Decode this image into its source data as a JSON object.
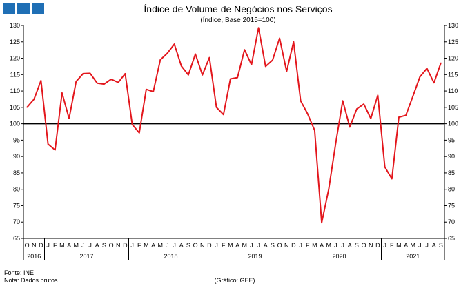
{
  "chart_data": {
    "type": "line",
    "title": "Índice de Volume de Negócios nos Serviços",
    "subtitle": "(Índice, Base 2015=100)",
    "ylim": [
      65,
      130
    ],
    "yticks": [
      65,
      70,
      75,
      80,
      85,
      90,
      95,
      100,
      105,
      110,
      115,
      120,
      125,
      130
    ],
    "reference_line": 100,
    "grid": false,
    "month_labels": [
      "O",
      "N",
      "D",
      "J",
      "F",
      "M",
      "A",
      "M",
      "J",
      "J",
      "A",
      "S",
      "O",
      "N",
      "D",
      "J",
      "F",
      "M",
      "A",
      "M",
      "J",
      "J",
      "A",
      "S",
      "O",
      "N",
      "D",
      "J",
      "F",
      "M",
      "A",
      "M",
      "J",
      "J",
      "A",
      "S",
      "O",
      "N",
      "D",
      "J",
      "F",
      "M",
      "A",
      "M",
      "J",
      "J",
      "A",
      "S",
      "O",
      "N",
      "D",
      "J",
      "F",
      "M",
      "A",
      "M",
      "J",
      "J",
      "A",
      "S"
    ],
    "years": [
      {
        "label": "2016",
        "start": 0,
        "count": 3
      },
      {
        "label": "2017",
        "start": 3,
        "count": 12
      },
      {
        "label": "2018",
        "start": 15,
        "count": 12
      },
      {
        "label": "2019",
        "start": 27,
        "count": 12
      },
      {
        "label": "2020",
        "start": 39,
        "count": 12
      },
      {
        "label": "2021",
        "start": 51,
        "count": 9
      }
    ],
    "series": [
      {
        "color": "#e3161c",
        "values": [
          105.0,
          107.5,
          113.2,
          93.8,
          92.0,
          109.4,
          101.6,
          112.9,
          115.3,
          115.4,
          112.4,
          112.1,
          113.6,
          112.6,
          115.3,
          99.8,
          97.2,
          110.5,
          109.8,
          119.5,
          121.5,
          124.3,
          117.6,
          114.9,
          121.3,
          114.9,
          120.2,
          105.0,
          102.8,
          113.7,
          114.1,
          122.6,
          118.0,
          129.3,
          117.5,
          119.4,
          126.1,
          116.0,
          125.0,
          107.0,
          103.0,
          98.0,
          69.8,
          80.0,
          94.0,
          107.0,
          99.0,
          104.5,
          106.0,
          101.6,
          108.7,
          86.8,
          83.2,
          102.0,
          102.6,
          108.4,
          114.3,
          116.9,
          112.5,
          118.6
        ]
      }
    ]
  },
  "footer": {
    "source": "Fonte: INE",
    "note": "Nota: Dados brutos.",
    "credit": "(Gráfico: GEE)"
  },
  "logo": {
    "color": "#1f6fb5"
  }
}
